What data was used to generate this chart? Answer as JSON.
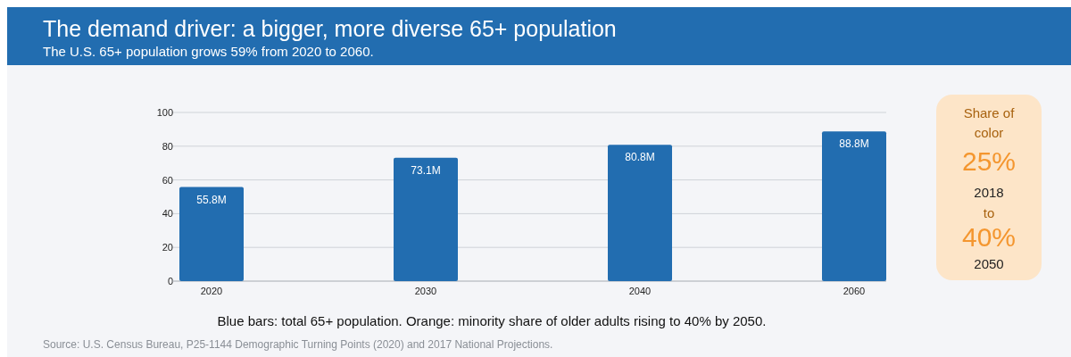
{
  "chart_data": [
    {
      "type": "bar",
      "title": "The demand driver: a bigger, more diverse 65+ population",
      "subtitle": "The U.S. 65+ population grows 59% from 2020 to 2060.",
      "categories": [
        "2020",
        "2030",
        "2040",
        "2060"
      ],
      "values": [
        55.8,
        73.1,
        80.8,
        88.8
      ],
      "value_labels": [
        "55.8M",
        "73.1M",
        "80.8M",
        "88.8M"
      ],
      "color": "#226db0",
      "ylim": [
        0,
        100
      ],
      "yticks": [
        0,
        20,
        40,
        60,
        80,
        100
      ],
      "grid": "y",
      "annotations": [
        "Blue bars: total 65+ population. Orange: minority share of older adults rising to 40% by 2050.",
        "Source: U.S. Census Bureau, P25-1144 Demographic Turning Points (2020) and 2017 National Projections."
      ]
    },
    {
      "type": "other",
      "title": "Share of color",
      "annotations": [
        "25%",
        "2018",
        "to",
        "40%",
        "2050"
      ]
    }
  ]
}
